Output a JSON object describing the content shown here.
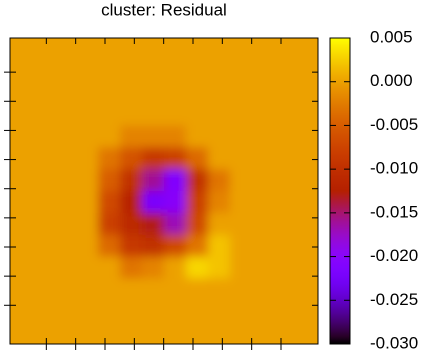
{
  "chart_data": {
    "type": "heatmap",
    "title": "cluster: Residual",
    "z": [
      [
        0,
        0,
        0,
        0,
        0,
        0,
        0,
        0,
        0,
        0,
        0,
        0,
        0,
        0
      ],
      [
        0,
        0,
        0,
        0,
        0,
        0,
        0,
        0,
        0,
        0,
        0,
        0,
        0,
        0
      ],
      [
        0,
        0,
        0,
        0,
        0,
        0,
        0,
        0,
        0,
        0,
        0,
        0,
        0,
        0
      ],
      [
        0,
        0,
        0,
        0,
        0,
        0,
        0,
        0,
        0,
        0,
        0,
        0,
        0,
        0
      ],
      [
        0,
        0,
        0,
        0,
        0,
        -0.002,
        -0.002,
        -0.002,
        0,
        0,
        0,
        0,
        0,
        0
      ],
      [
        0,
        0,
        0,
        0,
        -0.003,
        -0.006,
        -0.009,
        -0.008,
        -0.004,
        0,
        0,
        0,
        0,
        0
      ],
      [
        0,
        0,
        0,
        0,
        -0.005,
        -0.01,
        -0.016,
        -0.021,
        -0.01,
        -0.003,
        0,
        0,
        0,
        0
      ],
      [
        0,
        0,
        0,
        0,
        -0.007,
        -0.012,
        -0.022,
        -0.02,
        -0.008,
        -0.002,
        0,
        0,
        0,
        0
      ],
      [
        0,
        0,
        0,
        0,
        -0.008,
        -0.011,
        -0.013,
        -0.017,
        -0.007,
        0,
        0,
        0,
        0,
        0
      ],
      [
        0,
        0,
        0,
        0,
        -0.004,
        -0.009,
        -0.01,
        -0.007,
        -0.003,
        0.002,
        0,
        0,
        0,
        0
      ],
      [
        0,
        0,
        0,
        0,
        0,
        -0.003,
        -0.002,
        0,
        0.003,
        0.002,
        0,
        0,
        0,
        0
      ],
      [
        0,
        0,
        0,
        0,
        0,
        0,
        0,
        0,
        0,
        0,
        0,
        0,
        0,
        0
      ],
      [
        0,
        0,
        0,
        0,
        0,
        0,
        0,
        0,
        0,
        0,
        0,
        0,
        0,
        0
      ],
      [
        0,
        0,
        0,
        0,
        0,
        0,
        0,
        0,
        0,
        0,
        0,
        0,
        0,
        0
      ]
    ],
    "zlim": [
      -0.03,
      0.005
    ],
    "zticks": [
      0.005,
      {
        "value": 0,
        "label": "0.000"
      },
      -0.005,
      {
        "value": -0.01,
        "label": "-0.010"
      },
      -0.015,
      {
        "value": -0.02,
        "label": "-0.020"
      },
      -0.025,
      {
        "value": -0.03,
        "label": "-0.030"
      }
    ],
    "palette": "gnuplot"
  }
}
